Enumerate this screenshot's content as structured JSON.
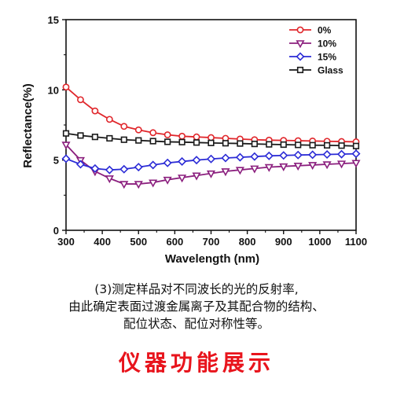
{
  "chart_data": {
    "type": "line",
    "title": "",
    "xlabel": "Wavelength (nm)",
    "ylabel": "Reflectance(%)",
    "xlim": [
      300,
      1100
    ],
    "ylim": [
      0,
      15
    ],
    "xticks": [
      "300",
      "400",
      "500",
      "600",
      "700",
      "800",
      "900",
      "1000",
      "1100"
    ],
    "yticks": [
      "0",
      "5",
      "10",
      "15"
    ],
    "legend_position": "top-right",
    "grid": false,
    "series": [
      {
        "name": "0%",
        "color": "#e0262b",
        "marker": "circle",
        "x": [
          300,
          340,
          380,
          420,
          460,
          500,
          540,
          580,
          620,
          660,
          700,
          740,
          780,
          820,
          860,
          900,
          940,
          980,
          1020,
          1060,
          1100
        ],
        "y": [
          10.2,
          9.3,
          8.5,
          7.9,
          7.4,
          7.15,
          6.95,
          6.8,
          6.7,
          6.65,
          6.6,
          6.55,
          6.5,
          6.45,
          6.42,
          6.4,
          6.38,
          6.36,
          6.34,
          6.32,
          6.3
        ]
      },
      {
        "name": "10%",
        "color": "#8b1f7e",
        "marker": "triangle-down",
        "x": [
          300,
          340,
          380,
          420,
          460,
          500,
          540,
          580,
          620,
          660,
          700,
          740,
          780,
          820,
          860,
          900,
          940,
          980,
          1020,
          1060,
          1100
        ],
        "y": [
          6.1,
          5.0,
          4.2,
          3.7,
          3.3,
          3.3,
          3.4,
          3.6,
          3.75,
          3.9,
          4.05,
          4.2,
          4.3,
          4.4,
          4.5,
          4.55,
          4.6,
          4.65,
          4.7,
          4.75,
          4.8
        ]
      },
      {
        "name": "15%",
        "color": "#2b2bd6",
        "marker": "diamond",
        "x": [
          300,
          340,
          380,
          420,
          460,
          500,
          540,
          580,
          620,
          660,
          700,
          740,
          780,
          820,
          860,
          900,
          940,
          980,
          1020,
          1060,
          1100
        ],
        "y": [
          5.1,
          4.7,
          4.4,
          4.3,
          4.35,
          4.5,
          4.65,
          4.8,
          4.9,
          5.0,
          5.08,
          5.15,
          5.2,
          5.25,
          5.3,
          5.33,
          5.36,
          5.38,
          5.4,
          5.42,
          5.45
        ]
      },
      {
        "name": "Glass",
        "color": "#1a1a1a",
        "marker": "square",
        "x": [
          300,
          340,
          380,
          420,
          460,
          500,
          540,
          580,
          620,
          660,
          700,
          740,
          780,
          820,
          860,
          900,
          940,
          980,
          1020,
          1060,
          1100
        ],
        "y": [
          6.9,
          6.75,
          6.65,
          6.55,
          6.45,
          6.4,
          6.35,
          6.3,
          6.28,
          6.25,
          6.22,
          6.2,
          6.18,
          6.15,
          6.12,
          6.1,
          6.08,
          6.06,
          6.05,
          6.03,
          6.0
        ]
      }
    ]
  },
  "caption": {
    "line1": "(3)测定样品对不同波长的光的反射率,",
    "line2": "由此确定表面过渡金属离子及其配合物的结构、",
    "line3": "配位状态、配位对称性等。"
  },
  "banner": "仪器功能展示"
}
